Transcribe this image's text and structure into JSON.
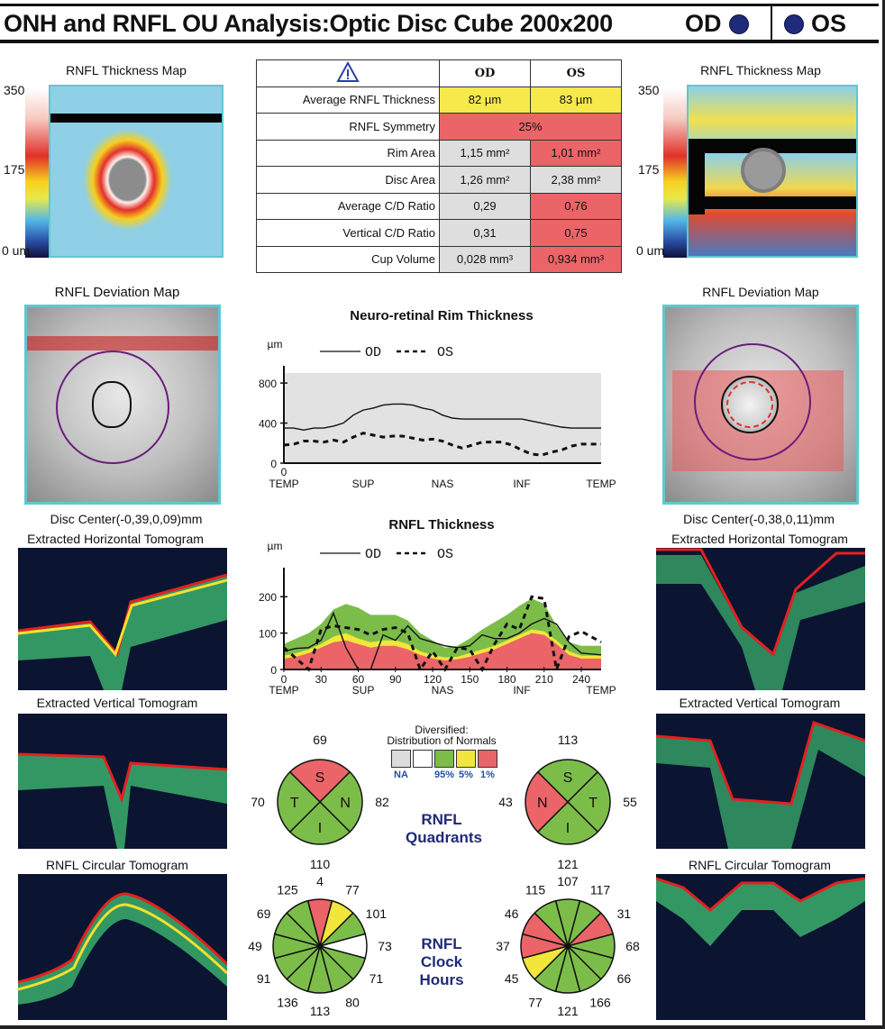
{
  "header": {
    "title": "ONH and RNFL OU Analysis:Optic Disc Cube 200x200",
    "od_label": "OD",
    "os_label": "OS",
    "eye_dot_color": "#1f2a78"
  },
  "thickness_map": {
    "title": "RNFL Thickness Map",
    "scale_max": "350",
    "scale_mid": "175",
    "scale_min": "0 um"
  },
  "metrics_table": {
    "warning_icon": "warning-triangle-icon",
    "col_od": "OD",
    "col_os": "OS",
    "rows": [
      {
        "label": "Average RNFL Thickness",
        "od": "82 µm",
        "os": "83 µm",
        "od_status": "yellow",
        "os_status": "yellow"
      },
      {
        "label": "RNFL Symmetry",
        "merged": "25%",
        "status": "red"
      },
      {
        "label": "Rim Area",
        "od": "1,15 mm²",
        "os": "1,01 mm²",
        "od_status": "gray",
        "os_status": "red"
      },
      {
        "label": "Disc Area",
        "od": "1,26 mm²",
        "os": "2,38 mm²",
        "od_status": "gray",
        "os_status": "gray"
      },
      {
        "label": "Average C/D Ratio",
        "od": "0,29",
        "os": "0,76",
        "od_status": "gray",
        "os_status": "red"
      },
      {
        "label": "Vertical C/D Ratio",
        "od": "0,31",
        "os": "0,75",
        "od_status": "gray",
        "os_status": "red"
      },
      {
        "label": "Cup Volume",
        "od": "0,028 mm³",
        "os": "0,934 mm³",
        "od_status": "gray",
        "os_status": "red"
      }
    ]
  },
  "deviation_map": {
    "title": "RNFL Deviation Map",
    "od_disc_center": "Disc Center(-0,39,0,09)mm",
    "os_disc_center": "Disc Center(-0,38,0,11)mm"
  },
  "tomograms": {
    "horizontal": "Extracted Horizontal Tomogram",
    "vertical": "Extracted Vertical Tomogram",
    "circular": "RNFL Circular Tomogram"
  },
  "chart_data": [
    {
      "type": "line",
      "title": "Neuro-retinal Rim Thickness",
      "ylabel": "µm",
      "ylim": [
        0,
        900
      ],
      "yticks": [
        "0",
        "400",
        "800"
      ],
      "x_origin_label": "0",
      "x_sector_labels": [
        "TEMP",
        "SUP",
        "NAS",
        "INF",
        "TEMP"
      ],
      "legend": {
        "od": "OD",
        "os": "OS"
      },
      "background": "#e2e2e2",
      "x": [
        0,
        8,
        16,
        24,
        32,
        40,
        48,
        56,
        64,
        72,
        80,
        88,
        96,
        104,
        112,
        120,
        128,
        136,
        144,
        152,
        160,
        168,
        176,
        184,
        192,
        200,
        208,
        216,
        224,
        232,
        240,
        248,
        256
      ],
      "series": [
        {
          "name": "OD",
          "style": "solid",
          "values": [
            350,
            350,
            330,
            350,
            350,
            370,
            400,
            480,
            530,
            550,
            580,
            590,
            590,
            580,
            550,
            530,
            480,
            450,
            440,
            440,
            440,
            440,
            440,
            440,
            440,
            420,
            400,
            380,
            360,
            350,
            350,
            350,
            350
          ]
        },
        {
          "name": "OS",
          "style": "dashed",
          "values": [
            180,
            190,
            220,
            220,
            210,
            230,
            210,
            260,
            300,
            280,
            260,
            270,
            270,
            250,
            230,
            240,
            220,
            180,
            150,
            180,
            210,
            210,
            210,
            180,
            130,
            90,
            80,
            110,
            130,
            170,
            190,
            190,
            190
          ]
        }
      ]
    },
    {
      "type": "area",
      "title": "RNFL Thickness",
      "ylabel": "µm",
      "ylim": [
        0,
        260
      ],
      "yticks": [
        "0",
        "100",
        "200"
      ],
      "xticks": [
        "0",
        "30",
        "60",
        "90",
        "120",
        "150",
        "180",
        "210",
        "240"
      ],
      "x_sector_labels": [
        "TEMP",
        "SUP",
        "NAS",
        "INF",
        "TEMP"
      ],
      "legend": {
        "od": "OD",
        "os": "OS"
      },
      "x": [
        0,
        10,
        20,
        30,
        40,
        50,
        60,
        70,
        80,
        90,
        100,
        110,
        120,
        130,
        140,
        150,
        160,
        170,
        180,
        190,
        200,
        210,
        220,
        230,
        240,
        256
      ],
      "normal_bands": {
        "red_1pct": [
          30,
          35,
          45,
          60,
          75,
          80,
          70,
          60,
          65,
          65,
          55,
          40,
          30,
          25,
          28,
          35,
          45,
          55,
          70,
          85,
          100,
          95,
          70,
          40,
          30,
          30
        ],
        "yellow_5pct": [
          38,
          45,
          55,
          70,
          90,
          100,
          85,
          75,
          80,
          80,
          70,
          50,
          40,
          33,
          35,
          45,
          55,
          65,
          80,
          95,
          110,
          105,
          80,
          50,
          38,
          38
        ],
        "green_95pct": [
          70,
          85,
          100,
          125,
          165,
          180,
          170,
          150,
          150,
          150,
          135,
          100,
          80,
          60,
          65,
          85,
          110,
          130,
          150,
          175,
          195,
          180,
          120,
          75,
          65,
          65
        ]
      },
      "series": [
        {
          "name": "OD",
          "style": "solid",
          "values": [
            50,
            58,
            60,
            80,
            155,
            60,
            0,
            0,
            95,
            80,
            120,
            85,
            75,
            65,
            60,
            65,
            95,
            85,
            85,
            100,
            125,
            140,
            125,
            75,
            45,
            40
          ]
        },
        {
          "name": "OS",
          "style": "dashed",
          "values": [
            60,
            30,
            0,
            110,
            120,
            115,
            110,
            95,
            110,
            115,
            100,
            0,
            50,
            0,
            60,
            55,
            0,
            70,
            125,
            110,
            200,
            195,
            0,
            90,
            105,
            75
          ]
        }
      ]
    }
  ],
  "quadrants": {
    "title_line1": "RNFL",
    "title_line2": "Quadrants",
    "legend": {
      "title_line1": "Diversified:",
      "title_line2": "Distribution of Normals",
      "items": [
        {
          "label": "NA",
          "color": "#dcdcdc"
        },
        {
          "label": "",
          "color": "#ffffff"
        },
        {
          "label": "95%",
          "color": "#7cbd4a"
        },
        {
          "label": "5%",
          "color": "#f2e63a"
        },
        {
          "label": "1%",
          "color": "#ea6468"
        }
      ]
    },
    "od": {
      "S": {
        "value": "69",
        "color": "#ea6468"
      },
      "N": {
        "value": "82",
        "color": "#7cbd4a"
      },
      "I": {
        "value": "110",
        "color": "#7cbd4a"
      },
      "T": {
        "value": "70",
        "color": "#7cbd4a"
      }
    },
    "os": {
      "S": {
        "value": "113",
        "color": "#7cbd4a"
      },
      "N": {
        "value": "43",
        "color": "#ea6468"
      },
      "I": {
        "value": "121",
        "color": "#7cbd4a"
      },
      "T": {
        "value": "55",
        "color": "#7cbd4a"
      }
    }
  },
  "clock_hours": {
    "title_line1": "RNFL",
    "title_line2": "Clock",
    "title_line3": "Hours",
    "od": [
      {
        "hour": 12,
        "value": "4",
        "color": "#ea6468"
      },
      {
        "hour": 1,
        "value": "77",
        "color": "#f2e63a"
      },
      {
        "hour": 2,
        "value": "101",
        "color": "#7cbd4a"
      },
      {
        "hour": 3,
        "value": "73",
        "color": "#ffffff"
      },
      {
        "hour": 4,
        "value": "71",
        "color": "#7cbd4a"
      },
      {
        "hour": 5,
        "value": "80",
        "color": "#7cbd4a"
      },
      {
        "hour": 6,
        "value": "113",
        "color": "#7cbd4a"
      },
      {
        "hour": 7,
        "value": "136",
        "color": "#7cbd4a"
      },
      {
        "hour": 8,
        "value": "91",
        "color": "#7cbd4a"
      },
      {
        "hour": 9,
        "value": "49",
        "color": "#7cbd4a"
      },
      {
        "hour": 10,
        "value": "69",
        "color": "#7cbd4a"
      },
      {
        "hour": 11,
        "value": "125",
        "color": "#7cbd4a"
      }
    ],
    "os": [
      {
        "hour": 12,
        "value": "107",
        "color": "#7cbd4a"
      },
      {
        "hour": 1,
        "value": "117",
        "color": "#7cbd4a"
      },
      {
        "hour": 2,
        "value": "31",
        "color": "#ea6468"
      },
      {
        "hour": 3,
        "value": "68",
        "color": "#7cbd4a"
      },
      {
        "hour": 4,
        "value": "66",
        "color": "#7cbd4a"
      },
      {
        "hour": 5,
        "value": "166",
        "color": "#7cbd4a"
      },
      {
        "hour": 6,
        "value": "121",
        "color": "#7cbd4a"
      },
      {
        "hour": 7,
        "value": "77",
        "color": "#7cbd4a"
      },
      {
        "hour": 8,
        "value": "45",
        "color": "#f2e63a"
      },
      {
        "hour": 9,
        "value": "37",
        "color": "#ea6468"
      },
      {
        "hour": 10,
        "value": "46",
        "color": "#ea6468"
      },
      {
        "hour": 11,
        "value": "115",
        "color": "#7cbd4a"
      }
    ]
  }
}
